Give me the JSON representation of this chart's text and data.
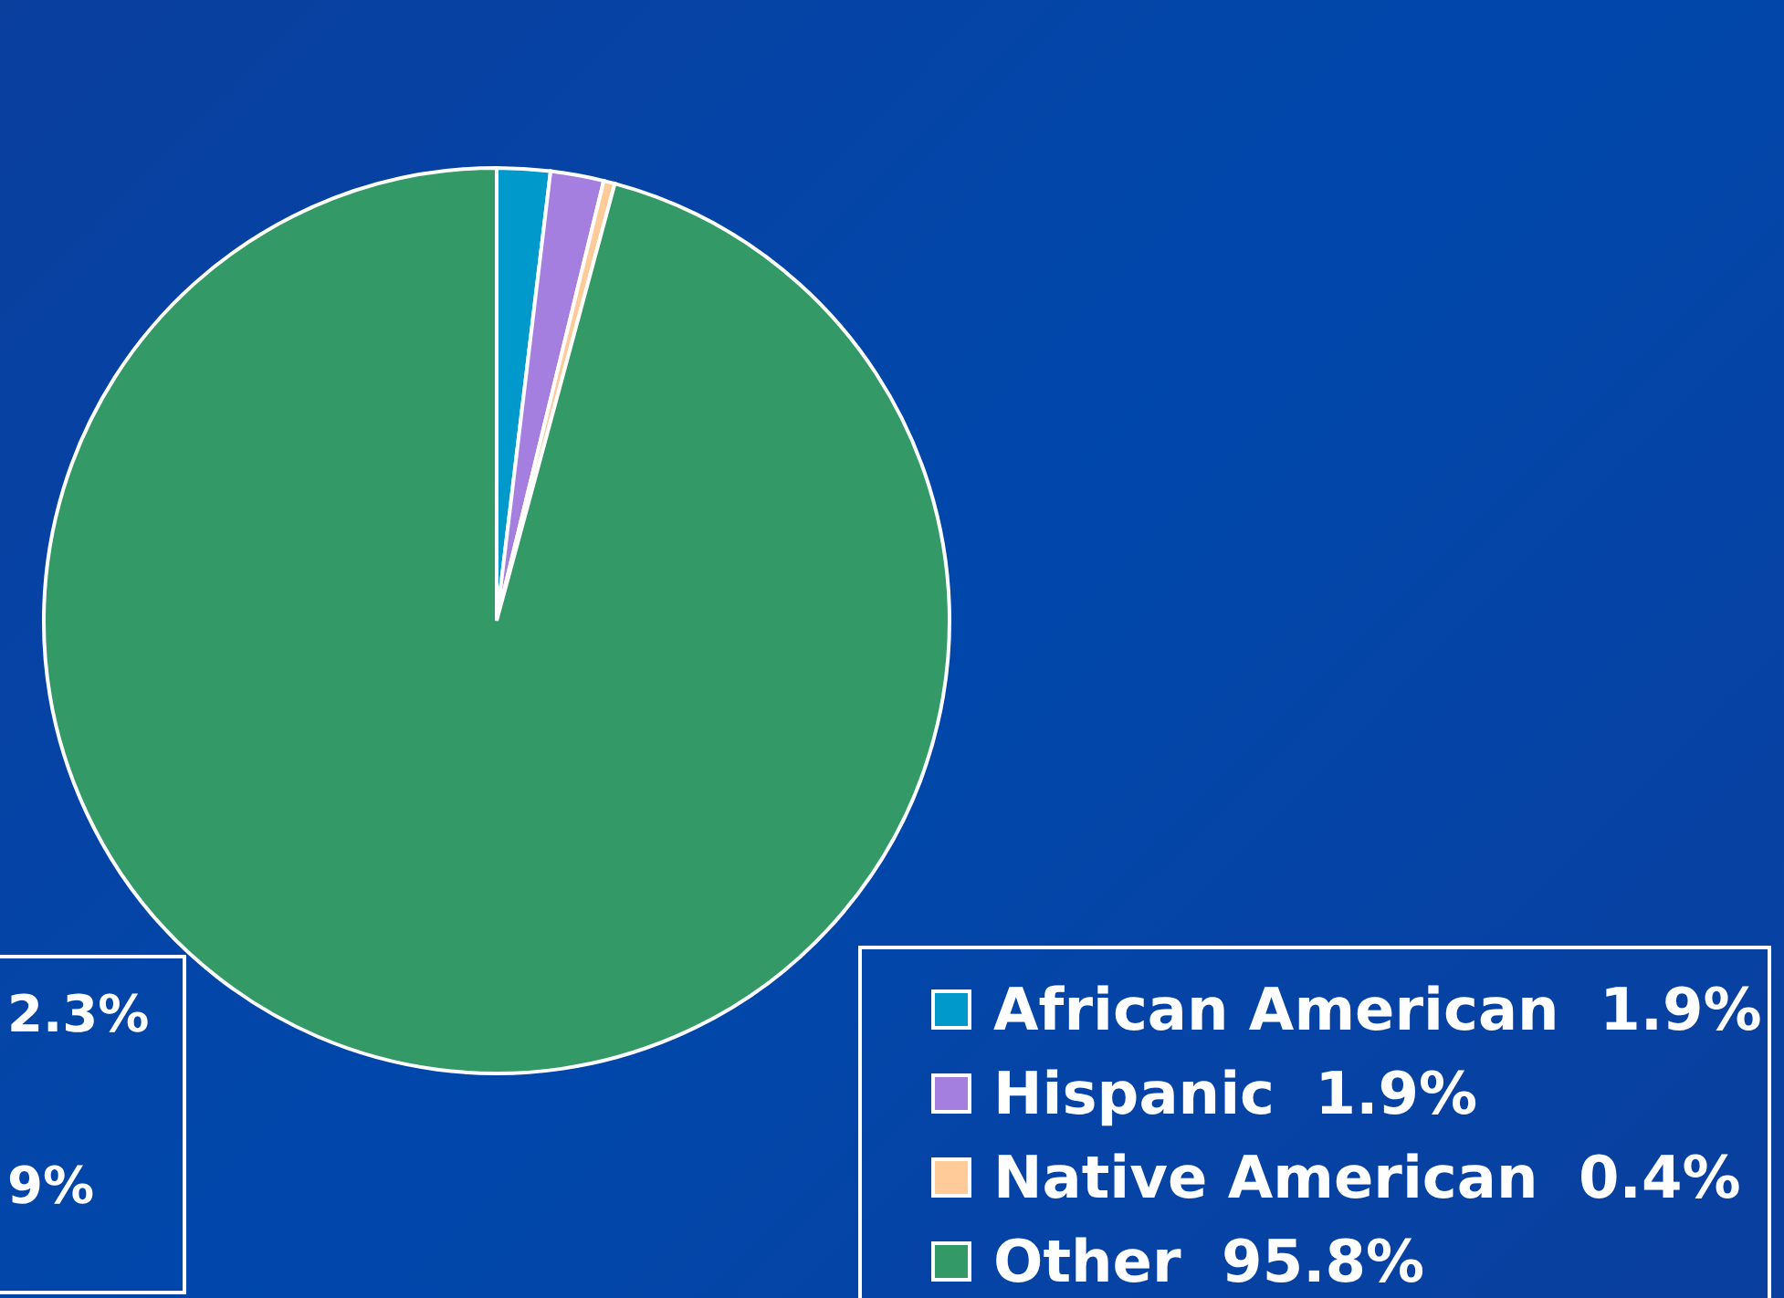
{
  "chart_data": {
    "type": "pie",
    "categories": [
      "African American",
      "Hispanic",
      "Native American",
      "Other"
    ],
    "values": [
      1.9,
      1.9,
      0.4,
      95.8
    ],
    "value_labels": [
      "1.9%",
      "1.9%",
      "0.4%",
      "95.8%"
    ],
    "colors": [
      "#0099cc",
      "#a57fe0",
      "#ffcc99",
      "#339966"
    ],
    "legend": "bottom right",
    "annotations": [
      "2.3%",
      "9%"
    ]
  }
}
